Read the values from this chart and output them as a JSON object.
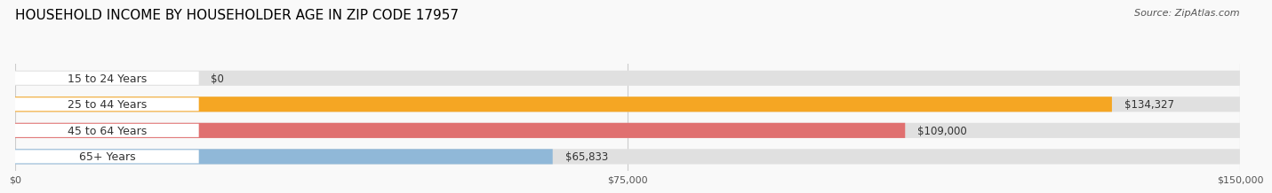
{
  "title": "HOUSEHOLD INCOME BY HOUSEHOLDER AGE IN ZIP CODE 17957",
  "source": "Source: ZipAtlas.com",
  "categories": [
    "15 to 24 Years",
    "25 to 44 Years",
    "45 to 64 Years",
    "65+ Years"
  ],
  "values": [
    0,
    134327,
    109000,
    65833
  ],
  "bar_colors": [
    "#f48fb1",
    "#f5a623",
    "#e07070",
    "#90b8d8"
  ],
  "value_labels": [
    "$0",
    "$134,327",
    "$109,000",
    "$65,833"
  ],
  "xlim": [
    0,
    150000
  ],
  "xticks": [
    0,
    75000,
    150000
  ],
  "xtick_labels": [
    "$0",
    "$75,000",
    "$150,000"
  ],
  "title_fontsize": 11,
  "source_fontsize": 8,
  "label_fontsize": 9,
  "value_fontsize": 8.5,
  "bar_height": 0.58,
  "background_color": "#f9f9f9",
  "grid_color": "#cccccc",
  "bar_bg_color": "#e0e0e0"
}
